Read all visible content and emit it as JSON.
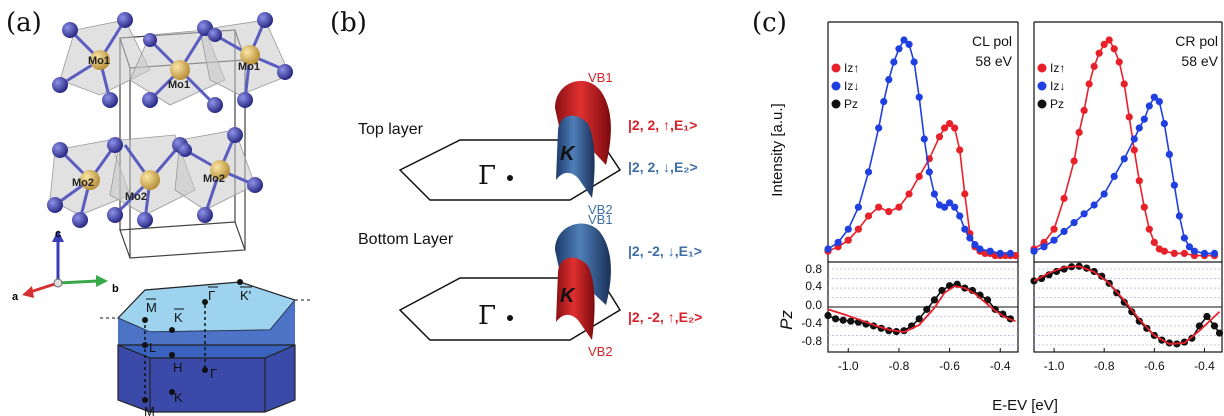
{
  "panel_labels": {
    "a": "(a)",
    "b": "(b)",
    "c": "(c)"
  },
  "panel_a": {
    "atoms": [
      "Mo1",
      "Mo1",
      "Mo1",
      "Mo2",
      "Mo2",
      "Mo2"
    ],
    "axes": {
      "c": "c",
      "a": "a",
      "b": "b"
    },
    "bz_points": {
      "M_bar": "M",
      "K_bar": "K",
      "Gamma_bar": "Γ",
      "K_prime_bar": "K'",
      "L": "L",
      "H": "H",
      "M": "M",
      "K": "K",
      "Gamma": "Γ"
    },
    "colors": {
      "sulfur": "#3a3c9e",
      "molybdenum": "#d8b45c",
      "bz_top": "#9ed3ef",
      "bz_body": "#3b4aa8"
    }
  },
  "panel_b": {
    "top_label": "Top layer",
    "bottom_label": "Bottom Layer",
    "gamma": "Γ",
    "k_label": "K",
    "top_vb1": "VB1",
    "top_vb2": "VB2",
    "bottom_vb1": "VB1",
    "bottom_vb2": "VB2",
    "top_state1": "|2, 2, ↑,E₁>",
    "top_state2": "|2, 2, ↓,E₂>",
    "bottom_state1": "|2, -2, ↓,E₁>",
    "bottom_state2": "|2, -2, ↑,E₂>",
    "colors": {
      "red": "#d8222a",
      "blue": "#3f6fa8"
    }
  },
  "chart_data": [
    {
      "type": "line",
      "panel": "left",
      "ylabel": "Intensity [a.u.]",
      "annotation": [
        "CL pol",
        "58 eV"
      ],
      "legend": [
        "Iz↑",
        "Iz↓",
        "Pz"
      ],
      "xlim": [
        -1.08,
        -0.33
      ],
      "series": [
        {
          "name": "Iz↑",
          "color": "#e8202a",
          "x": [
            -1.08,
            -1.04,
            -1.0,
            -0.96,
            -0.92,
            -0.88,
            -0.84,
            -0.8,
            -0.76,
            -0.72,
            -0.68,
            -0.64,
            -0.62,
            -0.6,
            -0.58,
            -0.56,
            -0.54,
            -0.52,
            -0.5,
            -0.48,
            -0.46,
            -0.44,
            -0.42,
            -0.4,
            -0.38,
            -0.36,
            -0.34
          ],
          "y": [
            0.04,
            0.06,
            0.09,
            0.14,
            0.2,
            0.24,
            0.22,
            0.24,
            0.3,
            0.38,
            0.46,
            0.56,
            0.6,
            0.62,
            0.6,
            0.5,
            0.3,
            0.12,
            0.06,
            0.04,
            0.03,
            0.03,
            0.02,
            0.02,
            0.02,
            0.02,
            0.02
          ]
        },
        {
          "name": "Iz↓",
          "color": "#1f3fe0",
          "x": [
            -1.08,
            -1.04,
            -1.0,
            -0.96,
            -0.92,
            -0.88,
            -0.86,
            -0.84,
            -0.82,
            -0.8,
            -0.78,
            -0.76,
            -0.74,
            -0.72,
            -0.7,
            -0.68,
            -0.66,
            -0.64,
            -0.62,
            -0.6,
            -0.58,
            -0.56,
            -0.54,
            -0.52,
            -0.5,
            -0.48,
            -0.44,
            -0.4,
            -0.36
          ],
          "y": [
            0.05,
            0.08,
            0.14,
            0.24,
            0.4,
            0.6,
            0.72,
            0.82,
            0.9,
            0.96,
            1.0,
            0.98,
            0.9,
            0.74,
            0.55,
            0.4,
            0.3,
            0.25,
            0.24,
            0.26,
            0.24,
            0.2,
            0.14,
            0.1,
            0.07,
            0.05,
            0.04,
            0.03,
            0.03
          ]
        },
        {
          "name": "Pz",
          "color": "#111111",
          "x": [
            -1.08,
            -1.05,
            -1.02,
            -0.99,
            -0.96,
            -0.93,
            -0.9,
            -0.87,
            -0.84,
            -0.81,
            -0.78,
            -0.75,
            -0.72,
            -0.69,
            -0.66,
            -0.63,
            -0.6,
            -0.57,
            -0.54,
            -0.51,
            -0.48,
            -0.45,
            -0.42,
            -0.39,
            -0.36
          ],
          "y": [
            -0.18,
            -0.25,
            -0.28,
            -0.3,
            -0.32,
            -0.36,
            -0.4,
            -0.45,
            -0.5,
            -0.52,
            -0.5,
            -0.4,
            -0.25,
            -0.05,
            0.15,
            0.35,
            0.45,
            0.48,
            0.4,
            0.35,
            0.25,
            0.15,
            -0.05,
            -0.15,
            -0.25
          ]
        },
        {
          "name": "fit-left",
          "color": "#e8202a",
          "x": [
            -1.08,
            -1.02,
            -0.96,
            -0.9,
            -0.84,
            -0.78,
            -0.72,
            -0.66,
            -0.62,
            -0.58,
            -0.54,
            -0.5,
            -0.46,
            -0.42,
            -0.38,
            -0.34
          ],
          "y": [
            -0.05,
            -0.15,
            -0.26,
            -0.38,
            -0.48,
            -0.53,
            -0.38,
            -0.02,
            0.3,
            0.44,
            0.4,
            0.28,
            0.1,
            -0.08,
            -0.22,
            -0.3
          ]
        }
      ]
    },
    {
      "type": "line",
      "panel": "right",
      "annotation": [
        "CR pol",
        "58 eV"
      ],
      "legend": [
        "Iz↑",
        "Iz↓",
        "Pz"
      ],
      "xlabel": "E-EV [eV]",
      "xlim": [
        -1.08,
        -0.33
      ],
      "series": [
        {
          "name": "Iz↑",
          "color": "#e8202a",
          "x": [
            -1.08,
            -1.04,
            -1.0,
            -0.96,
            -0.92,
            -0.9,
            -0.88,
            -0.86,
            -0.84,
            -0.82,
            -0.8,
            -0.78,
            -0.76,
            -0.74,
            -0.72,
            -0.7,
            -0.68,
            -0.66,
            -0.64,
            -0.62,
            -0.6,
            -0.58,
            -0.56,
            -0.52,
            -0.48,
            -0.44,
            -0.4,
            -0.36
          ],
          "y": [
            0.05,
            0.08,
            0.14,
            0.28,
            0.45,
            0.58,
            0.68,
            0.8,
            0.88,
            0.94,
            0.98,
            1.0,
            0.96,
            0.9,
            0.8,
            0.65,
            0.5,
            0.36,
            0.24,
            0.14,
            0.08,
            0.05,
            0.04,
            0.03,
            0.03,
            0.02,
            0.02,
            0.02
          ]
        },
        {
          "name": "Iz↓",
          "color": "#1f3fe0",
          "x": [
            -1.08,
            -1.04,
            -1.0,
            -0.96,
            -0.92,
            -0.88,
            -0.84,
            -0.8,
            -0.76,
            -0.72,
            -0.68,
            -0.66,
            -0.64,
            -0.62,
            -0.6,
            -0.58,
            -0.56,
            -0.54,
            -0.52,
            -0.5,
            -0.48,
            -0.46,
            -0.44,
            -0.4,
            -0.36
          ],
          "y": [
            0.04,
            0.06,
            0.09,
            0.13,
            0.17,
            0.21,
            0.25,
            0.3,
            0.38,
            0.46,
            0.55,
            0.6,
            0.64,
            0.7,
            0.74,
            0.72,
            0.62,
            0.48,
            0.34,
            0.2,
            0.1,
            0.06,
            0.04,
            0.03,
            0.03
          ]
        },
        {
          "name": "Pz",
          "color": "#111111",
          "x": [
            -1.08,
            -1.05,
            -1.02,
            -0.99,
            -0.96,
            -0.93,
            -0.9,
            -0.87,
            -0.84,
            -0.81,
            -0.78,
            -0.75,
            -0.72,
            -0.69,
            -0.66,
            -0.63,
            -0.6,
            -0.57,
            -0.54,
            -0.51,
            -0.48,
            -0.45,
            -0.42,
            -0.39,
            -0.36,
            -0.34
          ],
          "y": [
            0.55,
            0.6,
            0.68,
            0.75,
            0.8,
            0.85,
            0.86,
            0.82,
            0.75,
            0.65,
            0.5,
            0.3,
            0.1,
            -0.1,
            -0.3,
            -0.45,
            -0.6,
            -0.7,
            -0.76,
            -0.78,
            -0.74,
            -0.66,
            -0.4,
            -0.2,
            -0.4,
            -0.55
          ]
        },
        {
          "name": "fit-right",
          "color": "#e8202a",
          "x": [
            -1.08,
            -1.02,
            -0.96,
            -0.9,
            -0.84,
            -0.78,
            -0.72,
            -0.66,
            -0.6,
            -0.54,
            -0.48,
            -0.42,
            -0.36,
            -0.34
          ],
          "y": [
            0.55,
            0.72,
            0.84,
            0.86,
            0.74,
            0.5,
            0.14,
            -0.26,
            -0.6,
            -0.78,
            -0.76,
            -0.5,
            -0.2,
            -0.1
          ]
        }
      ],
      "pz_ylabel": "Pz",
      "pz_yticks": [
        "0.8",
        "0.4",
        "0.0",
        "-0.4",
        "-0.8"
      ],
      "x_ticks": [
        "-1.0",
        "-0.8",
        "-0.6",
        "-0.4"
      ],
      "pz_ylim": [
        -0.95,
        0.95
      ]
    }
  ]
}
